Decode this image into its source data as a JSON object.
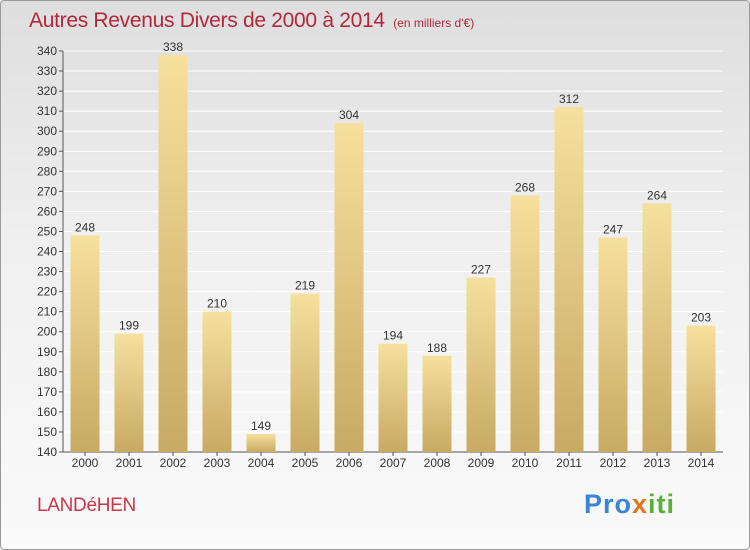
{
  "header": {
    "title": "Autres Revenus Divers de 2000 à 2014",
    "subtitle": "(en milliers d'€)"
  },
  "footer": {
    "commune": "LANDéHEN",
    "logo_parts": [
      "Pro",
      "x",
      "iti"
    ]
  },
  "colors": {
    "title": "#b1283d",
    "bar_top": "#f6e09e",
    "bar_bottom": "#c8aa62",
    "grid": "#ffffff"
  },
  "chart_data": {
    "type": "bar",
    "categories": [
      "2000",
      "2001",
      "2002",
      "2003",
      "2004",
      "2005",
      "2006",
      "2007",
      "2008",
      "2009",
      "2010",
      "2011",
      "2012",
      "2013",
      "2014"
    ],
    "values": [
      248,
      199,
      338,
      210,
      149,
      219,
      304,
      194,
      188,
      227,
      268,
      312,
      247,
      264,
      203
    ],
    "title": "Autres Revenus Divers de 2000 à 2014",
    "subtitle": "(en milliers d'€)",
    "xlabel": "",
    "ylabel": "",
    "ylim": [
      140,
      340
    ],
    "yticks": [
      140,
      150,
      160,
      170,
      180,
      190,
      200,
      210,
      220,
      230,
      240,
      250,
      260,
      270,
      280,
      290,
      300,
      310,
      320,
      330,
      340
    ],
    "grid": true,
    "data_labels": true
  }
}
